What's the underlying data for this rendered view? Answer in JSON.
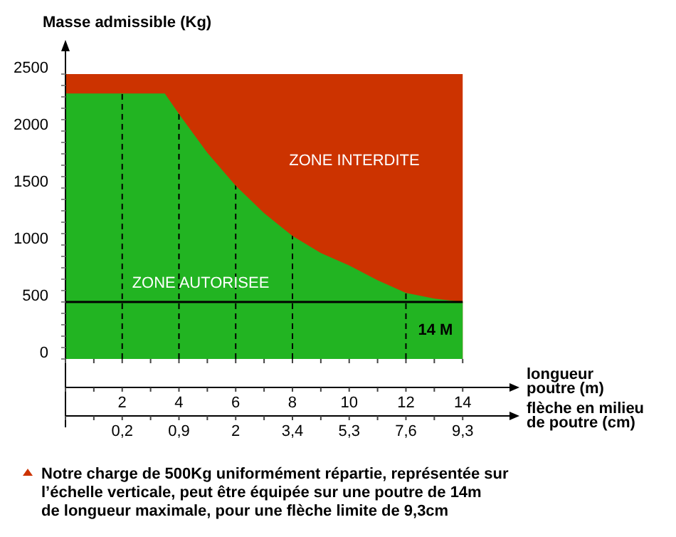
{
  "chart_data": {
    "type": "area",
    "ylabel": "Masse admissible (Kg)",
    "xlabel": "longueur poutre (m)",
    "xlim": [
      0,
      15.8
    ],
    "xticks": [
      2,
      4,
      6,
      8,
      10,
      12,
      14
    ],
    "ylim": [
      0,
      2500
    ],
    "yticks": [
      0,
      500,
      1000,
      1500,
      2000,
      2500
    ],
    "series": [
      {
        "color": "#cc3300",
        "x": [
          0,
          14
        ],
        "values": [
          2500,
          2500
        ]
      },
      {
        "color": "#22b422",
        "x": [
          0,
          3.5,
          4,
          5,
          6,
          7,
          8,
          9,
          10,
          11,
          12,
          13,
          14
        ],
        "values": [
          2330,
          2330,
          2150,
          1810,
          1520,
          1280,
          1080,
          930,
          820,
          690,
          580,
          530,
          500
        ]
      }
    ],
    "ref_lines": [
      {
        "axis": "y",
        "value": 500,
        "color": "#000000",
        "line_style": "solid"
      },
      {
        "axis": "x",
        "value": 2,
        "color": "#000000",
        "line_style": "dashed"
      },
      {
        "axis": "x",
        "value": 4,
        "color": "#000000",
        "line_style": "dashed"
      },
      {
        "axis": "x",
        "value": 6,
        "color": "#000000",
        "line_style": "dashed"
      },
      {
        "axis": "x",
        "value": 8,
        "color": "#000000",
        "line_style": "dashed"
      },
      {
        "axis": "x",
        "value": 12,
        "color": "#000000",
        "line_style": "dashed"
      }
    ],
    "annotations": [
      "ZONE INTERDITE",
      "ZONE AUTORISEE",
      "14 M",
      "0,2",
      "0,9",
      "2",
      "3,4",
      "5,3",
      "7,6",
      "9,3",
      "flèche en milieu de poutre (cm)",
      "Notre charge de 500Kg uniformément répartie, représentée sur l’échelle verticale, peut être équipée sur une poutre de 14m de longueur maximale, pour une flèche limite de 9,3cm"
    ],
    "grid": false
  }
}
